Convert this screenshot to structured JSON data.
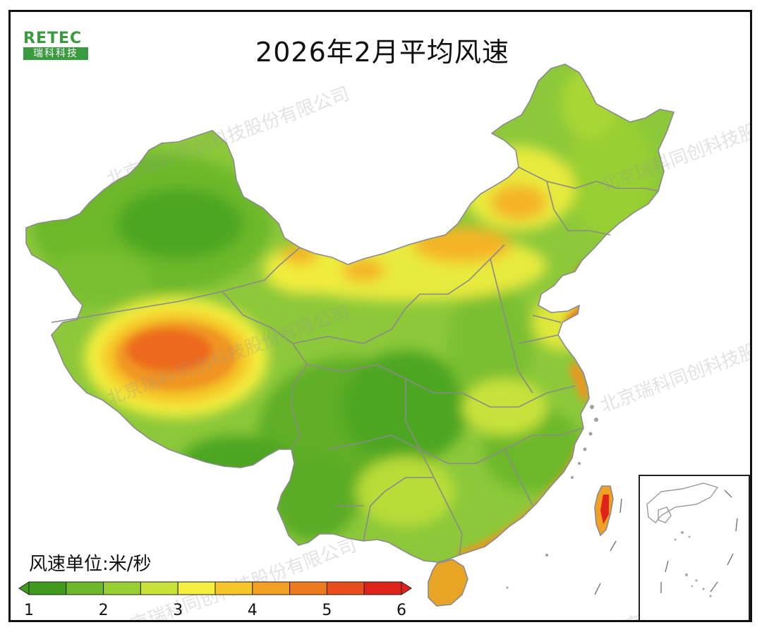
{
  "title": "2026年2月平均风速",
  "logo": {
    "word": "RETEC",
    "sub": "瑞科科技"
  },
  "watermark": "北京瑞科同创科技股份有限公司",
  "legend": {
    "title": "风速单位:米/秒",
    "ticks": [
      "1",
      "2",
      "3",
      "4",
      "5",
      "6"
    ],
    "colors": [
      "#3f9a1e",
      "#6cb82a",
      "#98cf33",
      "#c8e23a",
      "#f4ef3c",
      "#f6c528",
      "#f1a023",
      "#ee7a20",
      "#e94d1c",
      "#e0231a"
    ],
    "min": 1,
    "max": 6
  },
  "colors": {
    "province_border": "#8a8a8a",
    "coast": "#9e9e9e"
  }
}
